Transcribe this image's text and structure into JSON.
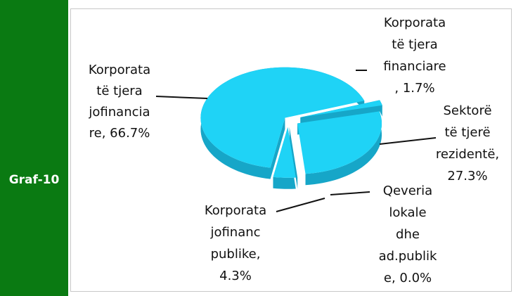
{
  "sidebar": {
    "label": "Graf-10"
  },
  "chart_data": {
    "type": "pie",
    "labels": [
      [
        "Korporata",
        "të tjera",
        "jofinancia",
        "re, 66.7%"
      ],
      [
        "Korporata",
        "të tjera",
        "financiare",
        ", 1.7%"
      ],
      [
        "Sektorë",
        "të tjerë",
        "rezidentë,",
        "27.3%"
      ],
      [
        "Qeveria",
        "lokale",
        "dhe",
        "ad.publik",
        "e, 0.0%"
      ],
      [
        "Korporata",
        "jofinanc",
        "publike,",
        "4.3%"
      ]
    ],
    "values": [
      66.7,
      1.7,
      27.3,
      0.0,
      4.3
    ],
    "color": "#1fd3f6"
  }
}
